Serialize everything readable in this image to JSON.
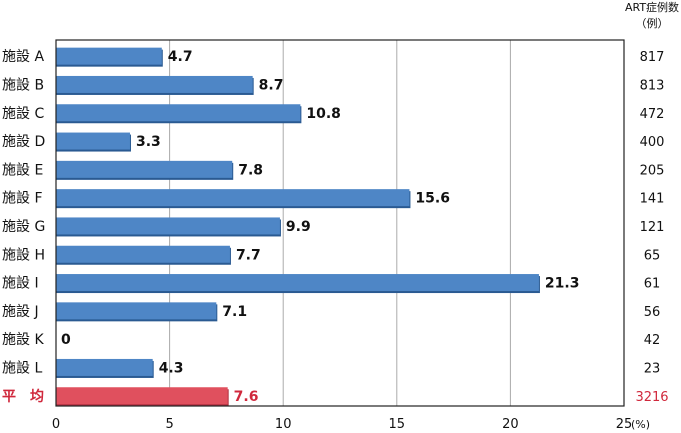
{
  "chart_data": {
    "type": "bar",
    "orientation": "horizontal",
    "categories": [
      "施設 A",
      "施設 B",
      "施設 C",
      "施設 D",
      "施設 E",
      "施設 F",
      "施設 G",
      "施設 H",
      "施設 I",
      "施設 J",
      "施設 K",
      "施設 L",
      "平　均"
    ],
    "values": [
      4.7,
      8.7,
      10.8,
      3.3,
      7.8,
      15.6,
      9.9,
      7.7,
      21.3,
      7.1,
      0,
      4.3,
      7.6
    ],
    "value_labels": [
      "4.7",
      "8.7",
      "10.8",
      "3.3",
      "7.8",
      "15.6",
      "9.9",
      "7.7",
      "21.3",
      "7.1",
      "0",
      "4.3",
      "7.6"
    ],
    "case_counts": [
      "817",
      "813",
      "472",
      "400",
      "205",
      "141",
      "121",
      "65",
      "61",
      "56",
      "42",
      "23",
      "3216"
    ],
    "count_header": [
      "ART症例数",
      "（例）"
    ],
    "x_ticks": [
      "0",
      "5",
      "10",
      "15",
      "20",
      "25"
    ],
    "x_unit": "(%)",
    "xlim": [
      0,
      25
    ],
    "grid": "vertical",
    "colors": {
      "bar": "#4e86c6",
      "bar_edge": "#2a5a92",
      "average_bar": "#e0505e",
      "average_edge": "#b03040",
      "average_text": "#d0283c",
      "grid": "#aaaaaa",
      "axis": "#222222",
      "text": "#111111"
    }
  }
}
